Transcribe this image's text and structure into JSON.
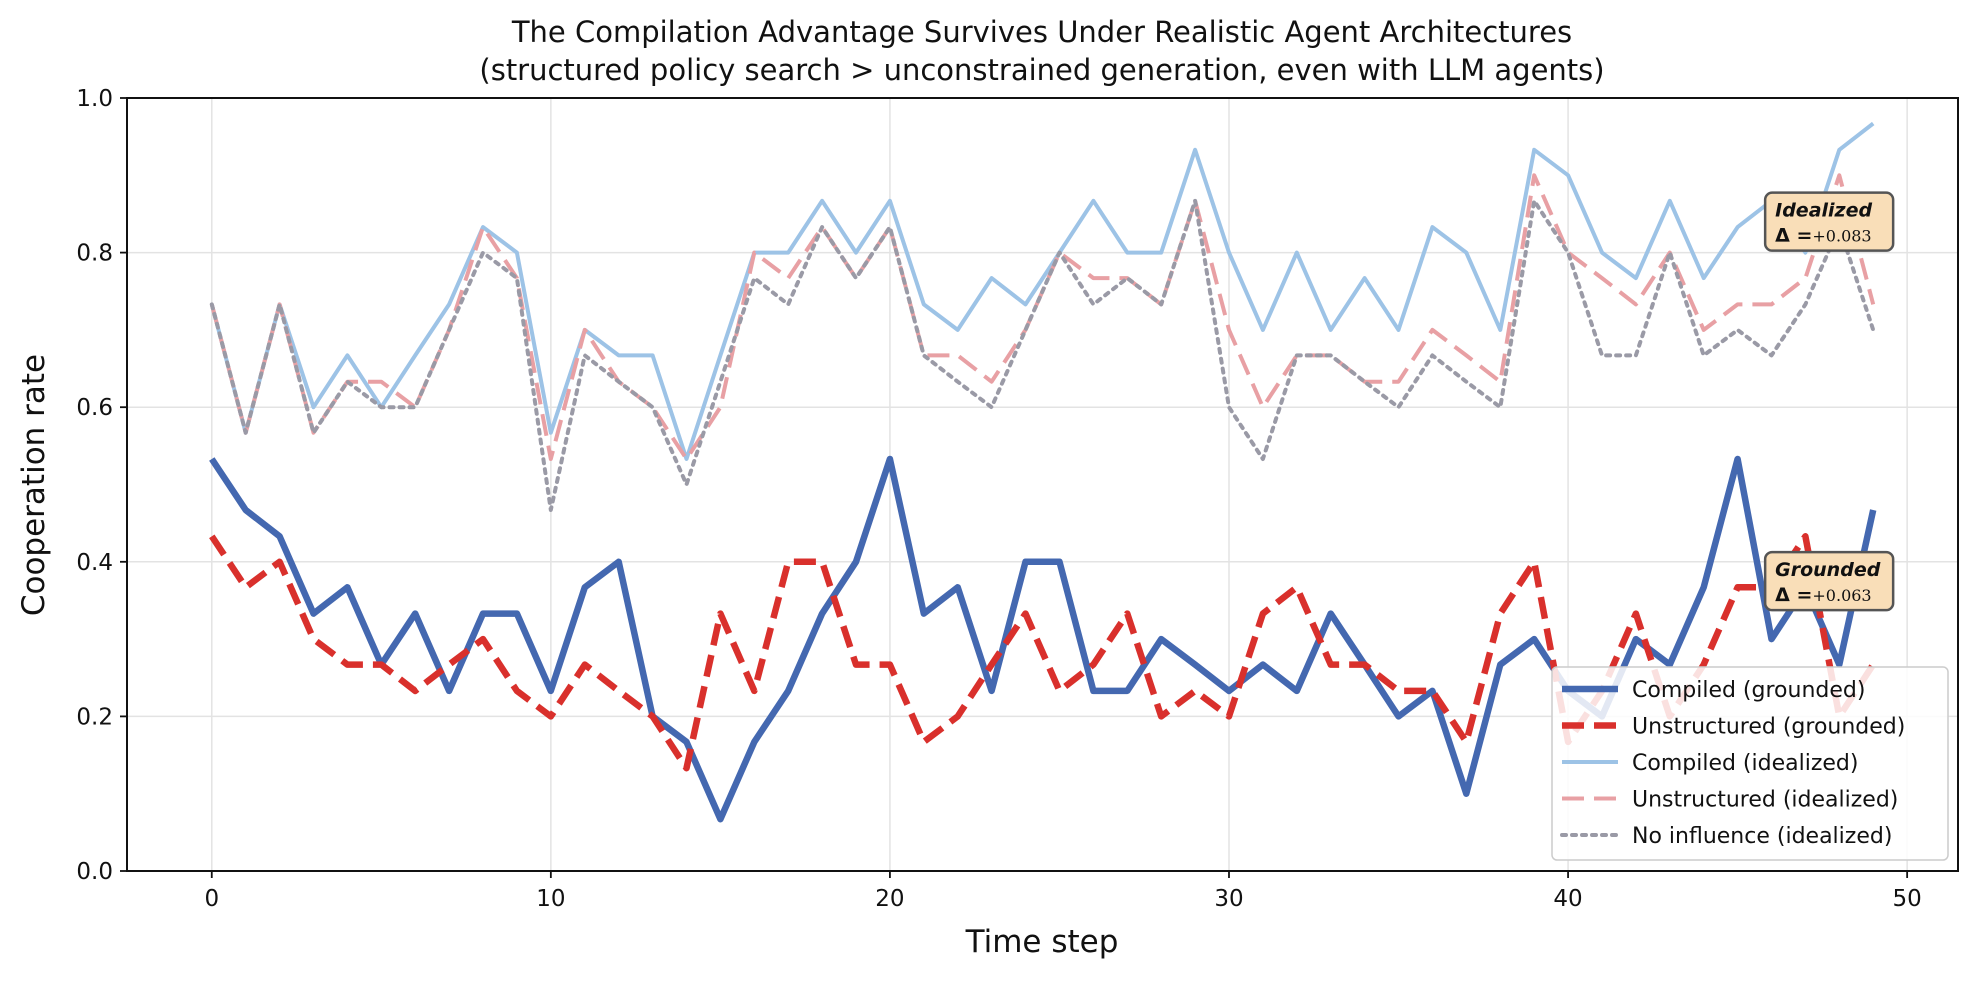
{
  "chart_data": {
    "type": "line",
    "title": "The Compilation Advantage Survives Under Realistic Agent Architectures",
    "subtitle": "(structured policy search > unconstrained generation, even with LLM agents)",
    "xlabel": "Time step",
    "ylabel": "Cooperation rate",
    "xlim": [
      -2.5,
      51.5
    ],
    "ylim": [
      0,
      1
    ],
    "xticks": [
      0,
      10,
      20,
      30,
      40,
      50
    ],
    "yticks": [
      0.0,
      0.2,
      0.4,
      0.6,
      0.8,
      1.0
    ],
    "xtick_labels": [
      "0",
      "10",
      "20",
      "30",
      "40",
      "50"
    ],
    "ytick_labels": [
      "0.0",
      "0.2",
      "0.4",
      "0.6",
      "0.8",
      "1.0"
    ],
    "grid": true,
    "legend_position": "lower-right",
    "x": [
      0,
      1,
      2,
      3,
      4,
      5,
      6,
      7,
      8,
      9,
      10,
      11,
      12,
      13,
      14,
      15,
      16,
      17,
      18,
      19,
      20,
      21,
      22,
      23,
      24,
      25,
      26,
      27,
      28,
      29,
      30,
      31,
      32,
      33,
      34,
      35,
      36,
      37,
      38,
      39,
      40,
      41,
      42,
      43,
      44,
      45,
      46,
      47,
      48,
      49
    ],
    "series": [
      {
        "name": "Compiled (idealized)",
        "color": "#9dc3e6",
        "dash": "solid",
        "width": "medium",
        "opacity": 1,
        "values": [
          0.733,
          0.567,
          0.733,
          0.6,
          0.667,
          0.6,
          0.667,
          0.733,
          0.833,
          0.8,
          0.567,
          0.7,
          0.667,
          0.667,
          0.533,
          0.667,
          0.8,
          0.8,
          0.867,
          0.8,
          0.867,
          0.733,
          0.7,
          0.767,
          0.733,
          0.8,
          0.867,
          0.8,
          0.8,
          0.933,
          0.8,
          0.7,
          0.8,
          0.7,
          0.767,
          0.7,
          0.833,
          0.8,
          0.7,
          0.933,
          0.9,
          0.8,
          0.767,
          0.867,
          0.767,
          0.833,
          0.867,
          0.8,
          0.933,
          0.967
        ]
      },
      {
        "name": "Unstructured (idealized)",
        "color": "#e8a0a4",
        "dash": "dashed",
        "width": "medium",
        "opacity": 1,
        "values": [
          0.733,
          0.567,
          0.733,
          0.567,
          0.633,
          0.633,
          0.6,
          0.7,
          0.833,
          0.767,
          0.533,
          0.7,
          0.633,
          0.6,
          0.533,
          0.6,
          0.8,
          0.767,
          0.833,
          0.767,
          0.833,
          0.667,
          0.667,
          0.633,
          0.7,
          0.8,
          0.767,
          0.767,
          0.733,
          0.867,
          0.7,
          0.6,
          0.667,
          0.667,
          0.633,
          0.633,
          0.7,
          0.667,
          0.633,
          0.9,
          0.8,
          0.767,
          0.733,
          0.8,
          0.7,
          0.733,
          0.733,
          0.767,
          0.9,
          0.733
        ]
      },
      {
        "name": "No influence (idealized)",
        "color": "#9a9aa6",
        "dash": "dotted",
        "width": "medium",
        "opacity": 1,
        "values": [
          0.733,
          0.567,
          0.733,
          0.567,
          0.633,
          0.6,
          0.6,
          0.7,
          0.8,
          0.767,
          0.467,
          0.667,
          0.633,
          0.6,
          0.5,
          0.633,
          0.767,
          0.733,
          0.833,
          0.767,
          0.833,
          0.667,
          0.633,
          0.6,
          0.7,
          0.8,
          0.733,
          0.767,
          0.733,
          0.867,
          0.6,
          0.533,
          0.667,
          0.667,
          0.633,
          0.6,
          0.667,
          0.633,
          0.6,
          0.867,
          0.8,
          0.667,
          0.667,
          0.8,
          0.667,
          0.7,
          0.667,
          0.733,
          0.833,
          0.7
        ]
      },
      {
        "name": "Compiled (grounded)",
        "color": "#4468b0",
        "dash": "solid",
        "width": "thick",
        "opacity": 1,
        "values": [
          0.533,
          0.467,
          0.433,
          0.333,
          0.367,
          0.267,
          0.333,
          0.233,
          0.333,
          0.333,
          0.233,
          0.367,
          0.4,
          0.2,
          0.167,
          0.067,
          0.167,
          0.233,
          0.333,
          0.4,
          0.533,
          0.333,
          0.367,
          0.233,
          0.4,
          0.4,
          0.233,
          0.233,
          0.3,
          0.267,
          0.233,
          0.267,
          0.233,
          0.333,
          0.267,
          0.2,
          0.233,
          0.1,
          0.267,
          0.3,
          0.233,
          0.2,
          0.3,
          0.267,
          0.367,
          0.533,
          0.3,
          0.367,
          0.267,
          0.467
        ]
      },
      {
        "name": "Unstructured (grounded)",
        "color": "#d9302c",
        "dash": "dashed",
        "width": "thick",
        "opacity": 1,
        "values": [
          0.433,
          0.367,
          0.4,
          0.3,
          0.267,
          0.267,
          0.233,
          0.267,
          0.3,
          0.233,
          0.2,
          0.267,
          0.233,
          0.2,
          0.133,
          0.333,
          0.233,
          0.4,
          0.4,
          0.267,
          0.267,
          0.167,
          0.2,
          0.267,
          0.333,
          0.233,
          0.267,
          0.333,
          0.2,
          0.233,
          0.2,
          0.333,
          0.367,
          0.267,
          0.267,
          0.233,
          0.233,
          0.167,
          0.333,
          0.4,
          0.167,
          0.233,
          0.333,
          0.2,
          0.267,
          0.367,
          0.367,
          0.433,
          0.2,
          0.267
        ]
      }
    ],
    "legend_order": [
      "Compiled (grounded)",
      "Unstructured (grounded)",
      "Compiled (idealized)",
      "Unstructured (idealized)",
      "No influence (idealized)"
    ],
    "annotations": [
      {
        "label": "Idealized",
        "delta_symbol": "Δ =",
        "delta_value": "+0.083",
        "x": 47.7,
        "y": 0.84
      },
      {
        "label": "Grounded",
        "delta_symbol": "Δ =",
        "delta_value": "+0.063",
        "x": 47.7,
        "y": 0.375
      }
    ],
    "annotation_style": {
      "fill": "#f9deb8",
      "stroke": "#555555"
    }
  }
}
